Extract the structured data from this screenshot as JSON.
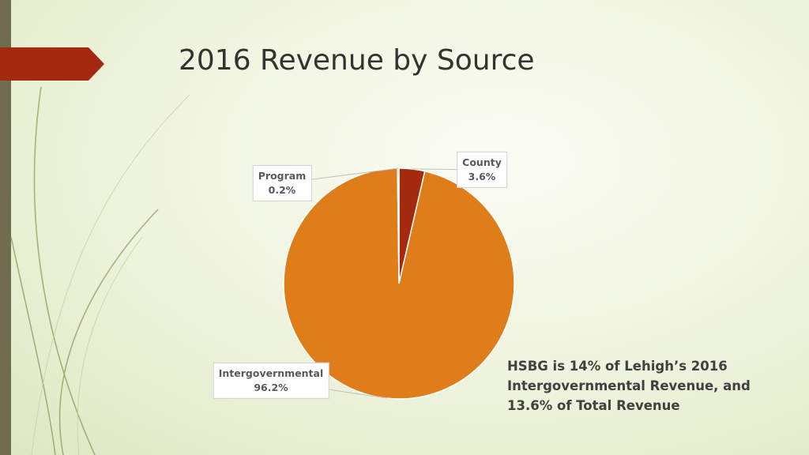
{
  "chart_data": {
    "type": "pie",
    "title": "2016 Revenue by Source",
    "categories": [
      "County",
      "Intergovernmental",
      "Program"
    ],
    "values": [
      3.6,
      96.2,
      0.2
    ],
    "value_labels": [
      "3.6%",
      "96.2%",
      "0.2%"
    ],
    "colors": [
      "#a3290f",
      "#e07d1b",
      "#f3b067"
    ],
    "annotation": "HSBG is 14% of Lehigh’s 2016 Intergovernmental Revenue, and 13.6% of Total Revenue"
  }
}
